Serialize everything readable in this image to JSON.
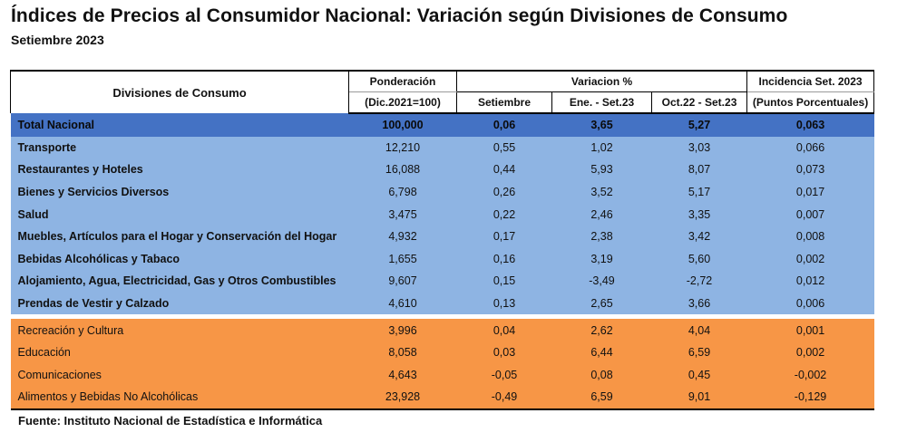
{
  "title": "Índices de Precios al Consumidor Nacional: Variación según Divisiones de Consumo",
  "subtitle": "Setiembre 2023",
  "source": "Fuente: Instituto Nacional de Estadística e Informática",
  "headers": {
    "divisions": "Divisiones de Consumo",
    "weight_top": "Ponderación",
    "weight_bottom": "(Dic.2021=100)",
    "variation": "Variacion %",
    "sept": "Setiembre",
    "ene_set": "Ene. - Set.23",
    "oct_set": "Oct.22 - Set.23",
    "incid_top": "Incidencia Set. 2023",
    "incid_bottom": "(Puntos Porcentuales)"
  },
  "total": {
    "name": "Total Nacional",
    "weight": "100,000",
    "sept": "0,06",
    "ytd": "3,65",
    "yoy": "5,27",
    "incid": "0,063"
  },
  "blue_rows": [
    {
      "name": "Transporte",
      "weight": "12,210",
      "sept": "0,55",
      "ytd": "1,02",
      "yoy": "3,03",
      "incid": "0,066"
    },
    {
      "name": "Restaurantes y Hoteles",
      "weight": "16,088",
      "sept": "0,44",
      "ytd": "5,93",
      "yoy": "8,07",
      "incid": "0,073"
    },
    {
      "name": "Bienes y Servicios Diversos",
      "weight": "6,798",
      "sept": "0,26",
      "ytd": "3,52",
      "yoy": "5,17",
      "incid": "0,017"
    },
    {
      "name": "Salud",
      "weight": "3,475",
      "sept": "0,22",
      "ytd": "2,46",
      "yoy": "3,35",
      "incid": "0,007"
    },
    {
      "name": "Muebles, Artículos para el Hogar y Conservación del Hogar",
      "weight": "4,932",
      "sept": "0,17",
      "ytd": "2,38",
      "yoy": "3,42",
      "incid": "0,008"
    },
    {
      "name": "Bebidas Alcohólicas y Tabaco",
      "weight": "1,655",
      "sept": "0,16",
      "ytd": "3,19",
      "yoy": "5,60",
      "incid": "0,002"
    },
    {
      "name": "Alojamiento, Agua, Electricidad, Gas y Otros Combustibles",
      "weight": "9,607",
      "sept": "0,15",
      "ytd": "-3,49",
      "yoy": "-2,72",
      "incid": "0,012"
    },
    {
      "name": "Prendas de Vestir y Calzado",
      "weight": "4,610",
      "sept": "0,13",
      "ytd": "2,65",
      "yoy": "3,66",
      "incid": "0,006"
    }
  ],
  "orange_rows": [
    {
      "name": "Recreación y Cultura",
      "weight": "3,996",
      "sept": "0,04",
      "ytd": "2,62",
      "yoy": "4,04",
      "incid": "0,001"
    },
    {
      "name": "Educación",
      "weight": "8,058",
      "sept": "0,03",
      "ytd": "6,44",
      "yoy": "6,59",
      "incid": "0,002"
    },
    {
      "name": "Comunicaciones",
      "weight": "4,643",
      "sept": "-0,05",
      "ytd": "0,08",
      "yoy": "0,45",
      "incid": "-0,002"
    },
    {
      "name": "Alimentos y Bebidas No Alcohólicas",
      "weight": "23,928",
      "sept": "-0,49",
      "ytd": "6,59",
      "yoy": "9,01",
      "incid": "-0,129"
    }
  ],
  "colors": {
    "total": "#4472c4",
    "blue": "#8eb4e3",
    "orange": "#f79646"
  }
}
